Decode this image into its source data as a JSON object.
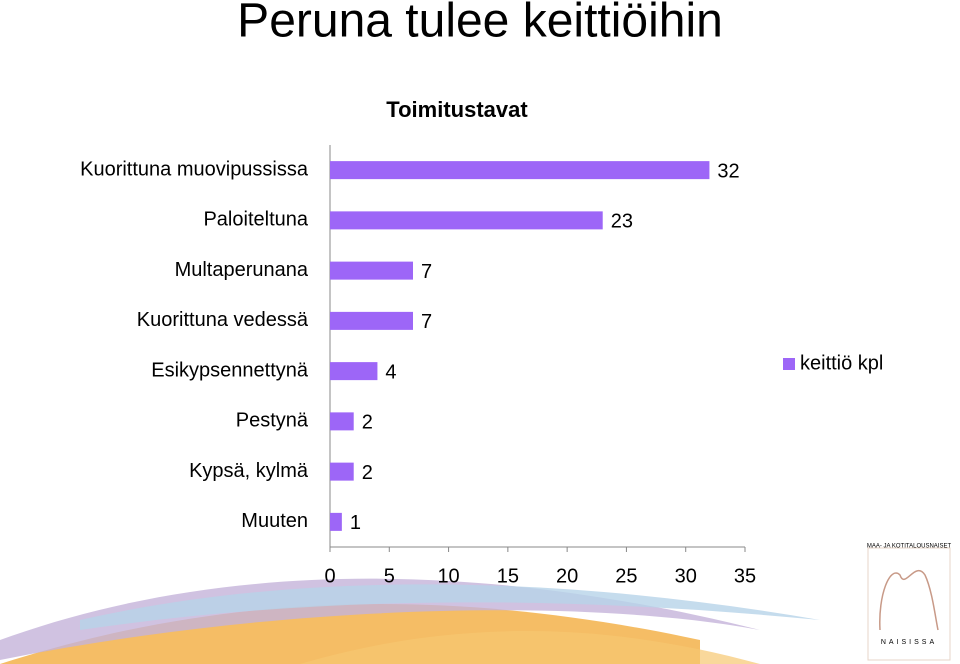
{
  "heading": "Peruna tulee keittiöihin",
  "logo": {
    "top": "MAA- JA KOTITALOUSNAISET",
    "bottom": "NAISISSA"
  },
  "chart_data": {
    "type": "barh",
    "title": "Toimitustavat",
    "categories": [
      "Kuorittuna muovipussissa",
      "Paloiteltuna",
      "Multaperunana",
      "Kuorittuna vedessä",
      "Esikypsennettynä",
      "Pestynä",
      "Kypsä, kylmä",
      "Muuten"
    ],
    "series": [
      {
        "name": "keittiö kpl",
        "color": "#9d66f7",
        "values": [
          32,
          23,
          7,
          7,
          4,
          2,
          2,
          1
        ]
      }
    ],
    "xlim": [
      0,
      35
    ],
    "xticks": [
      0,
      5,
      10,
      15,
      20,
      25,
      30,
      35
    ],
    "legend": "right",
    "grid": false
  }
}
